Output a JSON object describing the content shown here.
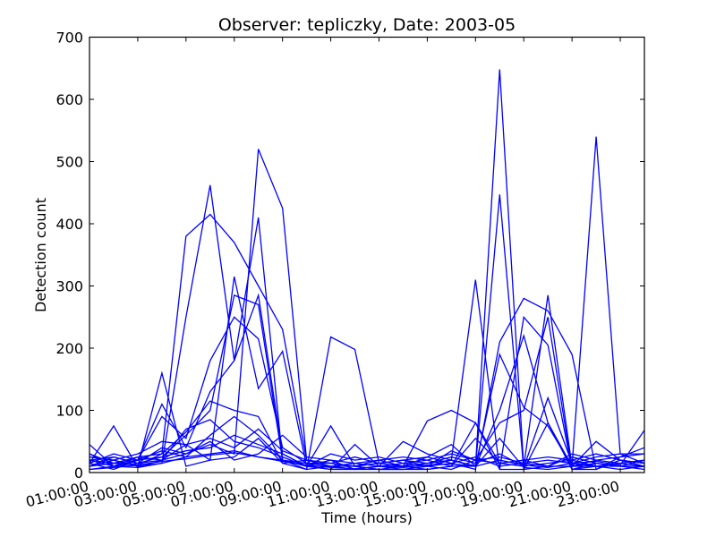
{
  "chart_data": {
    "type": "line",
    "title": "Observer: tepliczky, Date: 2003-05",
    "xlabel": "Time (hours)",
    "ylabel": "Detection count",
    "xlim": [
      1,
      24
    ],
    "ylim": [
      0,
      700
    ],
    "x_ticks": [
      "01:00:00",
      "03:00:00",
      "05:00:00",
      "07:00:00",
      "09:00:00",
      "11:00:00",
      "13:00:00",
      "15:00:00",
      "17:00:00",
      "19:00:00",
      "21:00:00",
      "23:00:00"
    ],
    "y_ticks": [
      "0",
      "100",
      "200",
      "300",
      "400",
      "500",
      "600",
      "700"
    ],
    "grid": false,
    "line_color": "#0000ff",
    "x": [
      1,
      2,
      3,
      4,
      5,
      6,
      7,
      8,
      9,
      10,
      11,
      12,
      13,
      14,
      15,
      16,
      17,
      18,
      19,
      20,
      21,
      22,
      23,
      24
    ],
    "series": [
      {
        "values": [
          45,
          10,
          8,
          20,
          30,
          45,
          30,
          520,
          425,
          20,
          15,
          10,
          15,
          20,
          15,
          20,
          10,
          648,
          8,
          5,
          10,
          20,
          15,
          20
        ]
      },
      {
        "values": [
          20,
          15,
          12,
          30,
          380,
          415,
          370,
          300,
          230,
          20,
          15,
          10,
          5,
          10,
          15,
          20,
          10,
          447,
          5,
          10,
          10,
          540,
          30,
          30
        ]
      },
      {
        "values": [
          15,
          75,
          8,
          15,
          250,
          462,
          180,
          410,
          20,
          10,
          5,
          5,
          10,
          5,
          10,
          20,
          310,
          5,
          250,
          205,
          5,
          15,
          10,
          10
        ]
      },
      {
        "values": [
          25,
          20,
          10,
          160,
          10,
          20,
          315,
          135,
          195,
          10,
          75,
          10,
          15,
          20,
          10,
          15,
          5,
          210,
          280,
          260,
          190,
          5,
          20,
          15
        ]
      },
      {
        "values": [
          10,
          25,
          15,
          25,
          60,
          100,
          285,
          270,
          20,
          5,
          10,
          5,
          5,
          5,
          5,
          10,
          80,
          15,
          10,
          285,
          10,
          10,
          15,
          20
        ]
      },
      {
        "values": [
          30,
          10,
          20,
          110,
          40,
          130,
          180,
          285,
          30,
          10,
          20,
          5,
          10,
          10,
          5,
          10,
          10,
          190,
          105,
          75,
          10,
          15,
          10,
          10
        ]
      },
      {
        "values": [
          15,
          5,
          20,
          90,
          55,
          180,
          250,
          215,
          40,
          15,
          15,
          10,
          5,
          5,
          10,
          5,
          20,
          80,
          100,
          250,
          5,
          10,
          5,
          10
        ]
      },
      {
        "values": [
          20,
          10,
          25,
          30,
          65,
          115,
          100,
          90,
          15,
          5,
          218,
          198,
          15,
          10,
          83,
          100,
          80,
          5,
          5,
          80,
          5,
          5,
          25,
          30
        ]
      },
      {
        "values": [
          10,
          15,
          20,
          35,
          25,
          60,
          90,
          60,
          20,
          10,
          5,
          45,
          10,
          50,
          30,
          20,
          10,
          100,
          220,
          80,
          10,
          50,
          20,
          10
        ]
      },
      {
        "values": [
          5,
          10,
          15,
          20,
          70,
          85,
          50,
          40,
          25,
          10,
          10,
          5,
          10,
          10,
          25,
          45,
          10,
          55,
          8,
          120,
          15,
          10,
          10,
          5
        ]
      },
      {
        "values": [
          25,
          20,
          30,
          50,
          45,
          55,
          40,
          70,
          35,
          20,
          10,
          15,
          10,
          15,
          20,
          10,
          55,
          15,
          20,
          10,
          25,
          15,
          10,
          20
        ]
      },
      {
        "values": [
          15,
          30,
          20,
          25,
          35,
          40,
          60,
          45,
          30,
          10,
          30,
          20,
          25,
          15,
          10,
          35,
          20,
          25,
          15,
          20,
          15,
          25,
          30,
          15
        ]
      },
      {
        "values": [
          10,
          20,
          10,
          15,
          25,
          30,
          35,
          25,
          20,
          15,
          10,
          10,
          20,
          10,
          15,
          25,
          15,
          30,
          10,
          15,
          20,
          10,
          15,
          10
        ]
      },
      {
        "values": [
          30,
          15,
          25,
          20,
          45,
          20,
          25,
          55,
          15,
          20,
          15,
          25,
          15,
          20,
          25,
          15,
          25,
          10,
          15,
          10,
          30,
          20,
          25,
          40
        ]
      },
      {
        "values": [
          20,
          25,
          15,
          40,
          30,
          50,
          20,
          30,
          60,
          25,
          20,
          15,
          20,
          25,
          20,
          30,
          20,
          15,
          20,
          25,
          20,
          30,
          20,
          15
        ]
      },
      {
        "values": [
          5,
          8,
          12,
          18,
          22,
          28,
          32,
          25,
          18,
          12,
          8,
          6,
          10,
          8,
          12,
          14,
          10,
          20,
          12,
          8,
          15,
          18,
          12,
          68
        ]
      }
    ]
  }
}
